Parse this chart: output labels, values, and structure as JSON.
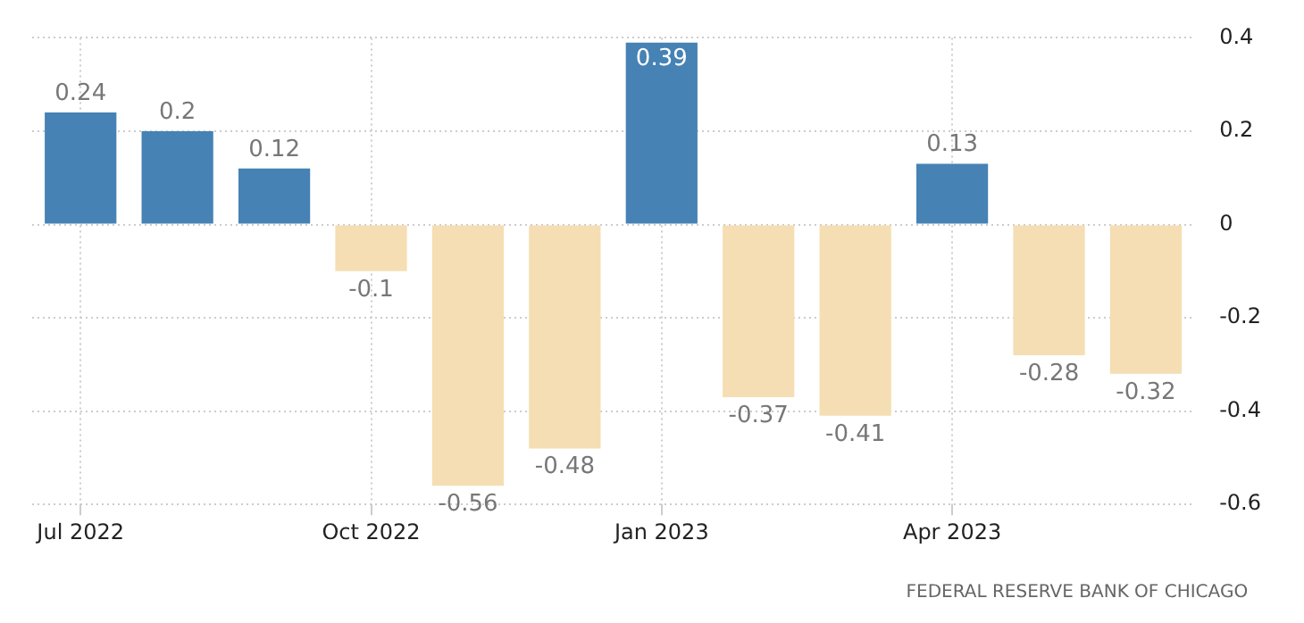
{
  "chart_data": {
    "type": "bar",
    "categories": [
      "Jul 2022",
      null,
      null,
      "Oct 2022",
      null,
      null,
      "Jan 2023",
      null,
      null,
      "Apr 2023",
      null,
      null
    ],
    "values": [
      0.24,
      0.2,
      0.12,
      -0.1,
      -0.56,
      -0.48,
      0.39,
      -0.37,
      -0.41,
      0.13,
      -0.28,
      -0.32
    ],
    "colors": [
      "#4682b4",
      "#4682b4",
      "#4682b4",
      "#f5deb3",
      "#f5deb3",
      "#f5deb3",
      "#4682b4",
      "#f5deb3",
      "#f5deb3",
      "#4682b4",
      "#f5deb3",
      "#f5deb3"
    ],
    "ylim": [
      -0.6,
      0.4
    ],
    "yticks": [
      -0.6,
      -0.4,
      -0.2,
      0,
      0.2,
      0.4
    ],
    "grid": true,
    "legend": false,
    "data_labels": true,
    "annotations": [
      "FEDERAL RESERVE BANK OF CHICAGO"
    ]
  }
}
